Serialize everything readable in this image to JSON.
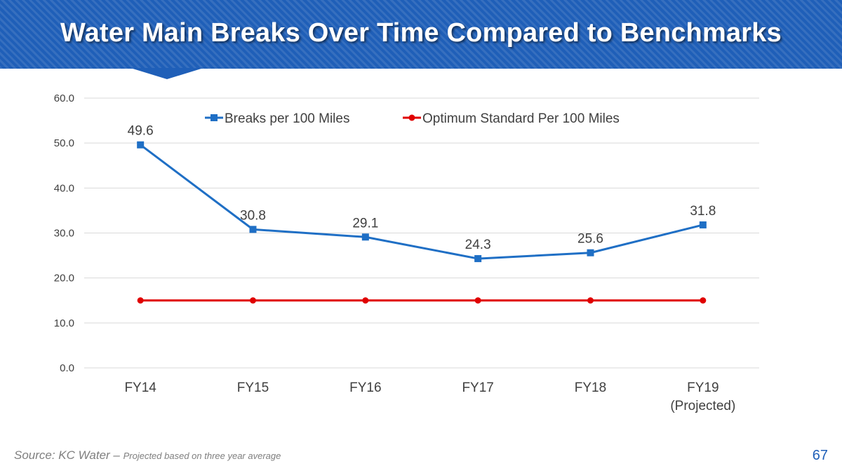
{
  "slide": {
    "title": "Water Main Breaks Over Time Compared to Benchmarks",
    "source_main": "Source: KC Water – ",
    "source_note": "Projected based on three year average",
    "page_number": "67"
  },
  "colors": {
    "banner": "#1f5fb8",
    "breaks_series": "#1f6fc5",
    "standard_series": "#e00000",
    "gridline": "#d9d9d9",
    "axis_text": "#404040"
  },
  "chart_data": {
    "type": "line",
    "title": "",
    "xlabel": "",
    "ylabel": "",
    "categories": [
      [
        "FY14"
      ],
      [
        "FY15"
      ],
      [
        "FY16"
      ],
      [
        "FY17"
      ],
      [
        "FY18"
      ],
      [
        "FY19",
        "(Projected)"
      ]
    ],
    "ylim": [
      0,
      60
    ],
    "yticks": [
      0,
      10,
      20,
      30,
      40,
      50,
      60
    ],
    "ytick_labels": [
      "0.0",
      "10.0",
      "20.0",
      "30.0",
      "40.0",
      "50.0",
      "60.0"
    ],
    "grid": true,
    "legend": "top",
    "series": [
      {
        "name": "Breaks per 100 Miles",
        "values": [
          49.6,
          30.8,
          29.1,
          24.3,
          25.6,
          31.8
        ],
        "labels": [
          "49.6",
          "30.8",
          "29.1",
          "24.3",
          "25.6",
          "31.8"
        ],
        "marker": "square"
      },
      {
        "name": "Optimum Standard Per 100 Miles",
        "values": [
          15,
          15,
          15,
          15,
          15,
          15
        ],
        "marker": "circle"
      }
    ]
  }
}
